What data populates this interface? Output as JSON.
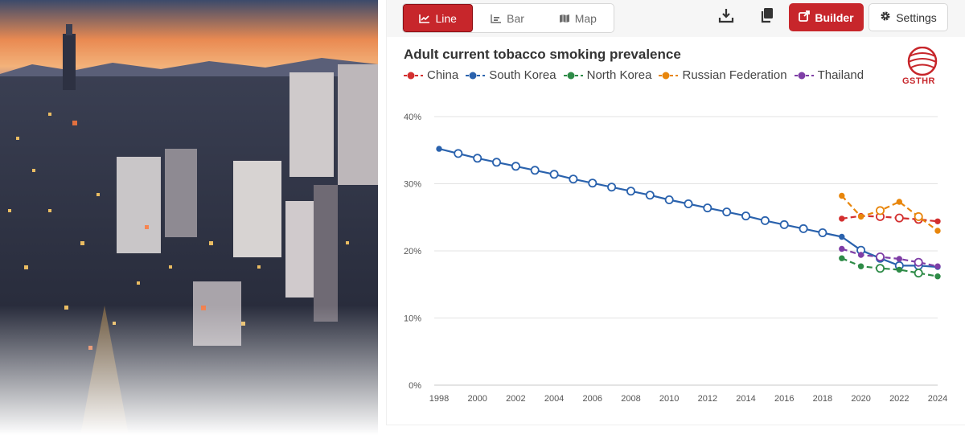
{
  "toolbar": {
    "tabs": [
      {
        "label": "Line",
        "icon": "line-chart-icon",
        "active": true
      },
      {
        "label": "Bar",
        "icon": "bar-chart-icon",
        "active": false
      },
      {
        "label": "Map",
        "icon": "map-icon",
        "active": false
      }
    ],
    "download_icon": "download-icon",
    "copy_icon": "copy-icon",
    "builder_label": "Builder",
    "settings_label": "Settings"
  },
  "logo": {
    "text": "GSTHR"
  },
  "colors": {
    "accent": "#c7262b",
    "China": "#d32f2f",
    "South Korea": "#2a62ad",
    "North Korea": "#2e8b47",
    "Russian Federation": "#e8860c",
    "Thailand": "#7e3ea6"
  },
  "chart_data": {
    "type": "line",
    "title": "Adult current tobacco smoking prevalence",
    "xlabel": "",
    "ylabel": "",
    "ylim": [
      0,
      40
    ],
    "yticks": [
      "0%",
      "10%",
      "20%",
      "30%",
      "40%"
    ],
    "xticks": [
      "1998",
      "2000",
      "2002",
      "2004",
      "2006",
      "2008",
      "2010",
      "2012",
      "2014",
      "2016",
      "2018",
      "2020",
      "2022",
      "2024"
    ],
    "grid": true,
    "legend_position": "top-left",
    "series": [
      {
        "name": "China",
        "dashed": true,
        "points": [
          [
            2019,
            24.8
          ],
          [
            2020,
            25.2
          ],
          [
            2021,
            25.1
          ],
          [
            2022,
            24.9
          ],
          [
            2023,
            24.7
          ],
          [
            2024,
            24.4
          ]
        ],
        "hollow": [
          2021,
          2022,
          2023
        ]
      },
      {
        "name": "South Korea",
        "dashed": false,
        "points": [
          [
            1998,
            35.2
          ],
          [
            1999,
            34.5
          ],
          [
            2000,
            33.8
          ],
          [
            2001,
            33.2
          ],
          [
            2002,
            32.6
          ],
          [
            2003,
            32.0
          ],
          [
            2004,
            31.4
          ],
          [
            2005,
            30.7
          ],
          [
            2006,
            30.1
          ],
          [
            2007,
            29.5
          ],
          [
            2008,
            28.9
          ],
          [
            2009,
            28.3
          ],
          [
            2010,
            27.6
          ],
          [
            2011,
            27.0
          ],
          [
            2012,
            26.4
          ],
          [
            2013,
            25.8
          ],
          [
            2014,
            25.2
          ],
          [
            2015,
            24.5
          ],
          [
            2016,
            23.9
          ],
          [
            2017,
            23.3
          ],
          [
            2018,
            22.7
          ],
          [
            2019,
            22.1
          ],
          [
            2020,
            20.1
          ],
          [
            2021,
            18.9
          ],
          [
            2022,
            17.8
          ],
          [
            2023,
            17.8
          ],
          [
            2024,
            17.6
          ]
        ],
        "hollow": [
          1999,
          2000,
          2001,
          2002,
          2003,
          2004,
          2005,
          2006,
          2007,
          2008,
          2009,
          2010,
          2011,
          2012,
          2013,
          2014,
          2015,
          2016,
          2017,
          2018,
          2020,
          2021,
          2022,
          2023
        ]
      },
      {
        "name": "North Korea",
        "dashed": true,
        "points": [
          [
            2019,
            18.9
          ],
          [
            2020,
            17.7
          ],
          [
            2021,
            17.4
          ],
          [
            2022,
            17.2
          ],
          [
            2023,
            16.7
          ],
          [
            2024,
            16.2
          ]
        ],
        "hollow": [
          2021,
          2023
        ]
      },
      {
        "name": "Russian Federation",
        "dashed": true,
        "points": [
          [
            2019,
            28.2
          ],
          [
            2020,
            25.1
          ],
          [
            2021,
            26.0
          ],
          [
            2022,
            27.3
          ],
          [
            2023,
            25.1
          ],
          [
            2024,
            23.0
          ]
        ],
        "hollow": [
          2021,
          2023
        ]
      },
      {
        "name": "Thailand",
        "dashed": true,
        "points": [
          [
            2019,
            20.3
          ],
          [
            2020,
            19.4
          ],
          [
            2021,
            19.1
          ],
          [
            2022,
            18.8
          ],
          [
            2023,
            18.3
          ],
          [
            2024,
            17.7
          ]
        ],
        "hollow": [
          2021,
          2023
        ]
      }
    ]
  }
}
